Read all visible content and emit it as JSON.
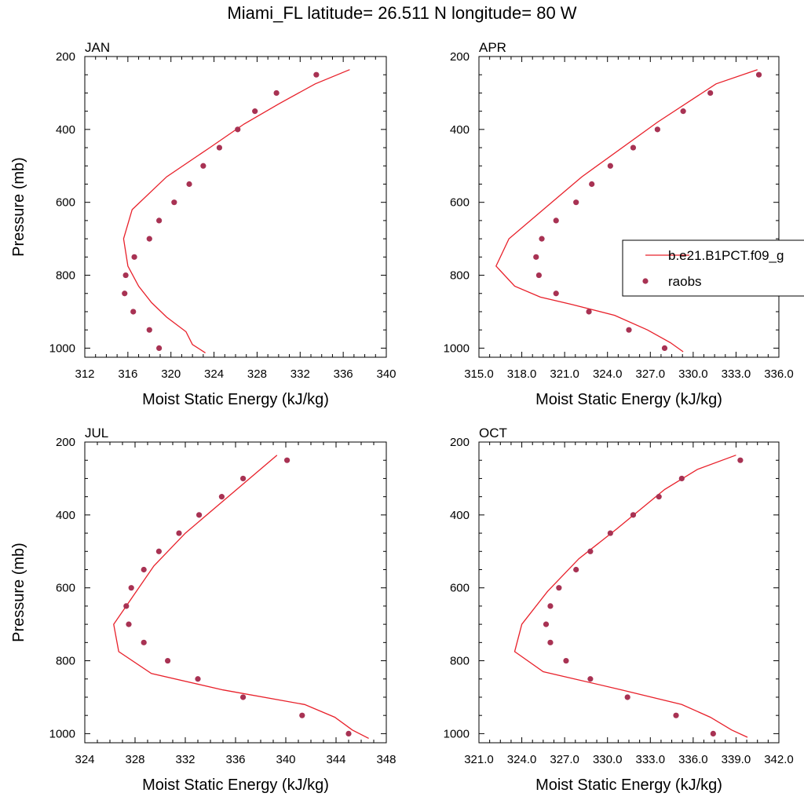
{
  "title": "Miami_FL  latitude= 26.511 N longitude= 80 W",
  "colors": {
    "model": "#e8202a",
    "obs": "#a83253",
    "frame": "#000000"
  },
  "legend": {
    "model_label": "b.e21.B1PCT.f09_g",
    "obs_label": "raobs",
    "placement": "right of APR panel"
  },
  "chart_data": [
    {
      "type": "line",
      "panel_title": "JAN",
      "xlabel": "Moist Static Energy (kJ/kg)",
      "ylabel": "Pressure (mb)",
      "xlim": [
        312,
        340
      ],
      "xticks": [
        312,
        316,
        320,
        324,
        328,
        332,
        336,
        340
      ],
      "xtick_labels": [
        "312",
        "316",
        "320",
        "324",
        "328",
        "332",
        "336",
        "340"
      ],
      "ylim": [
        200,
        1025
      ],
      "yticks": [
        200,
        400,
        600,
        800,
        1000
      ],
      "series": [
        {
          "name": "b.e21.B1PCT.f09_g",
          "kind": "line",
          "x": [
            336.6,
            333.4,
            330.0,
            326.8,
            323.6,
            319.6,
            316.4,
            315.6,
            316.0,
            317.0,
            318.2,
            319.6,
            321.4,
            322.0,
            323.2
          ],
          "y": [
            236,
            275,
            330,
            385,
            450,
            530,
            620,
            700,
            775,
            830,
            875,
            915,
            955,
            990,
            1013
          ]
        },
        {
          "name": "raobs",
          "kind": "scatter",
          "x": [
            333.5,
            329.8,
            327.8,
            326.2,
            324.5,
            323.0,
            321.7,
            320.3,
            318.9,
            318.0,
            316.6,
            315.8,
            315.7,
            316.5,
            318.0,
            318.9
          ],
          "y": [
            250,
            300,
            350,
            400,
            450,
            500,
            550,
            600,
            650,
            700,
            750,
            800,
            850,
            900,
            950,
            1000
          ]
        }
      ]
    },
    {
      "type": "line",
      "panel_title": "APR",
      "xlabel": "Moist Static Energy (kJ/kg)",
      "ylabel": "",
      "xlim": [
        315,
        336
      ],
      "xticks": [
        315,
        318,
        321,
        324,
        327,
        330,
        333,
        336
      ],
      "xtick_labels": [
        "315.0",
        "318.0",
        "321.0",
        "324.0",
        "327.0",
        "330.0",
        "333.0",
        "336.0"
      ],
      "ylim": [
        200,
        1025
      ],
      "yticks": [
        200,
        400,
        600,
        800,
        1000
      ],
      "series": [
        {
          "name": "b.e21.B1PCT.f09_g",
          "kind": "line",
          "x": [
            334.5,
            331.6,
            327.5,
            322.2,
            317.1,
            316.2,
            317.5,
            319.3,
            321.5,
            324.5,
            326.8,
            328.4,
            329.3
          ],
          "y": [
            236,
            275,
            380,
            530,
            700,
            775,
            830,
            860,
            880,
            910,
            950,
            985,
            1010
          ]
        },
        {
          "name": "raobs",
          "kind": "scatter",
          "x": [
            334.6,
            331.2,
            329.3,
            327.5,
            325.8,
            324.2,
            322.9,
            321.8,
            320.4,
            319.4,
            319.0,
            319.2,
            320.4,
            322.7,
            325.5,
            328.0
          ],
          "y": [
            250,
            300,
            350,
            400,
            450,
            500,
            550,
            600,
            650,
            700,
            750,
            800,
            850,
            900,
            950,
            1000
          ]
        }
      ]
    },
    {
      "type": "line",
      "panel_title": "JUL",
      "xlabel": "Moist Static Energy (kJ/kg)",
      "ylabel": "Pressure (mb)",
      "xlim": [
        324,
        348
      ],
      "xticks": [
        324,
        328,
        332,
        336,
        340,
        344,
        348
      ],
      "xtick_labels": [
        "324",
        "328",
        "332",
        "336",
        "340",
        "344",
        "348"
      ],
      "ylim": [
        200,
        1025
      ],
      "yticks": [
        200,
        400,
        600,
        800,
        1000
      ],
      "series": [
        {
          "name": "b.e21.B1PCT.f09_g",
          "kind": "line",
          "x": [
            339.3,
            332.0,
            329.5,
            326.3,
            326.7,
            329.3,
            335.0,
            341.5,
            343.9,
            345.3,
            346.6
          ],
          "y": [
            236,
            450,
            540,
            700,
            775,
            835,
            880,
            920,
            955,
            990,
            1013
          ]
        },
        {
          "name": "raobs",
          "kind": "scatter",
          "x": [
            340.1,
            336.6,
            334.9,
            333.1,
            331.5,
            329.9,
            328.7,
            327.7,
            327.3,
            327.5,
            328.7,
            330.6,
            333.0,
            336.6,
            341.3,
            345.0
          ],
          "y": [
            250,
            300,
            350,
            400,
            450,
            500,
            550,
            600,
            650,
            700,
            750,
            800,
            850,
            900,
            950,
            1000
          ]
        }
      ]
    },
    {
      "type": "line",
      "panel_title": "OCT",
      "xlabel": "Moist Static Energy (kJ/kg)",
      "ylabel": "",
      "xlim": [
        321,
        342
      ],
      "xticks": [
        321,
        324,
        327,
        330,
        333,
        336,
        339,
        342
      ],
      "xtick_labels": [
        "321.0",
        "324.0",
        "327.0",
        "330.0",
        "333.0",
        "336.0",
        "339.0",
        "342.0"
      ],
      "ylim": [
        200,
        1025
      ],
      "yticks": [
        200,
        400,
        600,
        800,
        1000
      ],
      "series": [
        {
          "name": "b.e21.B1PCT.f09_g",
          "kind": "line",
          "x": [
            339.0,
            336.3,
            334.0,
            330.6,
            328.0,
            325.8,
            324.0,
            323.5,
            325.5,
            331.0,
            335.2,
            337.2,
            338.7,
            339.8
          ],
          "y": [
            236,
            275,
            330,
            440,
            520,
            610,
            700,
            775,
            830,
            880,
            920,
            955,
            990,
            1010
          ]
        },
        {
          "name": "raobs",
          "kind": "scatter",
          "x": [
            339.3,
            335.2,
            333.6,
            331.8,
            330.2,
            328.8,
            327.8,
            326.6,
            326.0,
            325.7,
            326.0,
            327.1,
            328.8,
            331.4,
            334.8,
            337.4
          ],
          "y": [
            250,
            300,
            350,
            400,
            450,
            500,
            550,
            600,
            650,
            700,
            750,
            800,
            850,
            900,
            950,
            1000
          ]
        }
      ]
    }
  ]
}
